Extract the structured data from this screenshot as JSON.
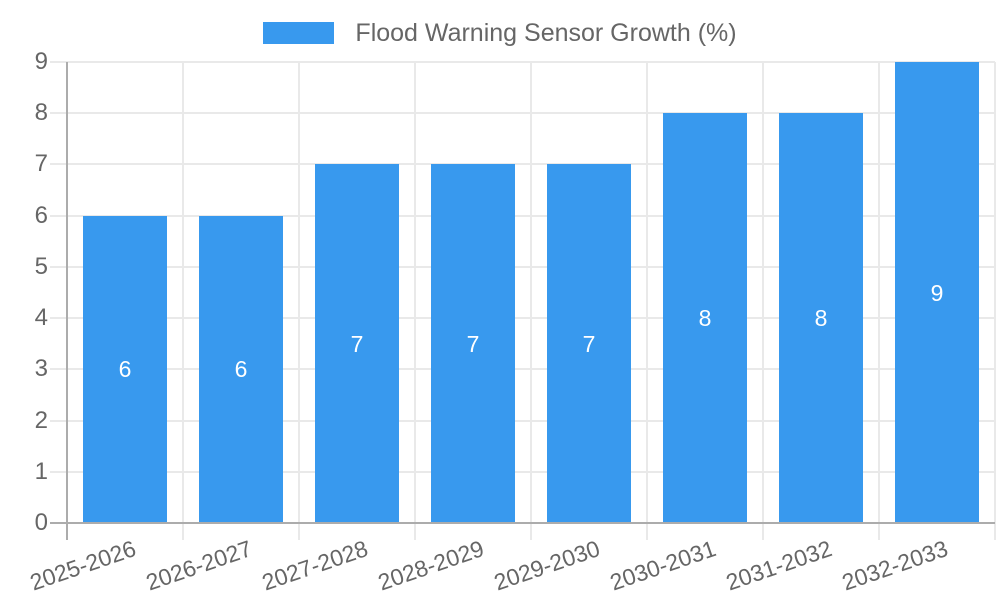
{
  "legend": {
    "label": "Flood Warning Sensor Growth (%)"
  },
  "chart_data": {
    "type": "bar",
    "title": "Flood Warning Sensor Growth (%)",
    "categories": [
      "2025-2026",
      "2026-2027",
      "2027-2028",
      "2028-2029",
      "2029-2030",
      "2030-2031",
      "2031-2032",
      "2032-2033"
    ],
    "values": [
      6,
      6,
      7,
      7,
      7,
      8,
      8,
      9
    ],
    "bar_value_labels": [
      "6",
      "6",
      "7",
      "7",
      "7",
      "8",
      "8",
      "9"
    ],
    "xlabel": "",
    "ylabel": "",
    "ylim": [
      0,
      9
    ],
    "yticks": [
      0,
      1,
      2,
      3,
      4,
      5,
      6,
      7,
      8,
      9
    ],
    "legend_position": "top",
    "grid": true,
    "colors": {
      "bar": "#3899EE",
      "tick_text": "#666666",
      "bar_label_text": "#ffffff",
      "gridline": "#e9e9e9",
      "axis_line": "#acacac"
    }
  }
}
